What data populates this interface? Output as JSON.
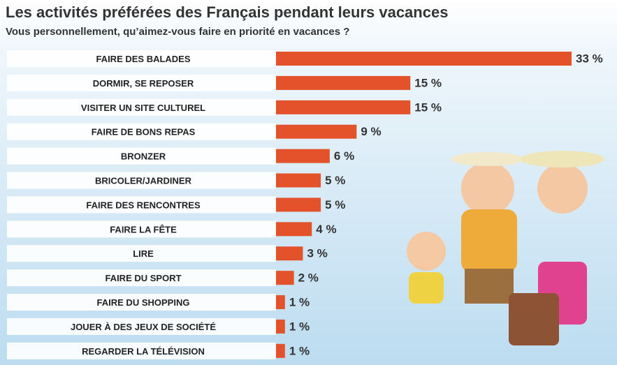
{
  "chart_data": {
    "type": "bar",
    "orientation": "horizontal",
    "title": "Les activités préférées des Français pendant leurs vacances",
    "subtitle": "Vous personnellement, qu’aimez-vous faire en priorité en vacances ?",
    "categories": [
      "FAIRE DES BALADES",
      "DORMIR, SE REPOSER",
      "VISITER UN SITE CULTUREL",
      "FAIRE DE BONS REPAS",
      "BRONZER",
      "BRICOLER/JARDINER",
      "FAIRE DES RENCONTRES",
      "FAIRE LA FÊTE",
      "LIRE",
      "FAIRE DU SPORT",
      "FAIRE DU SHOPPING",
      "JOUER À DES JEUX DE SOCIÉTÉ",
      "REGARDER LA TÉLÉVISION"
    ],
    "values": [
      33,
      15,
      15,
      9,
      6,
      5,
      5,
      4,
      3,
      2,
      1,
      1,
      1
    ],
    "value_labels": [
      "33 %",
      "15 %",
      "15 %",
      "9 %",
      "6 %",
      "5 %",
      "5 %",
      "4 %",
      "3 %",
      "2 %",
      "1 %",
      "1 %",
      "1 %"
    ],
    "color": "#e4522b"
  }
}
